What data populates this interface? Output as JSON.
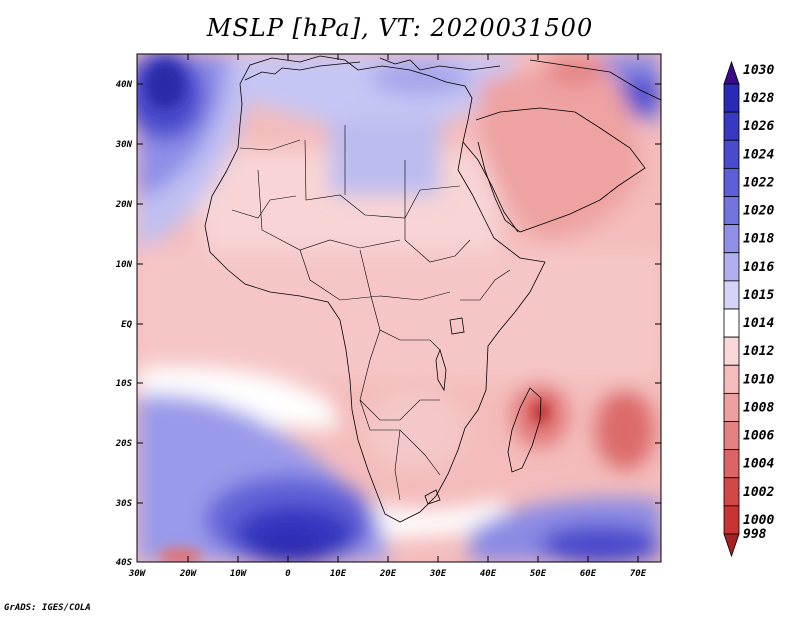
{
  "title": "MSLP [hPa], VT: 2020031500",
  "credit": "GrADS: IGES/COLA",
  "variable": "Mean sea level pressure",
  "units": "hPa",
  "valid_time": "2020031500",
  "lat_labels": [
    "40N",
    "30N",
    "20N",
    "10N",
    "EQ",
    "10S",
    "20S",
    "30S",
    "40S"
  ],
  "lon_labels": [
    "30W",
    "20W",
    "10W",
    "0",
    "10E",
    "20E",
    "30E",
    "40E",
    "50E",
    "60E",
    "70E"
  ],
  "colorbar": {
    "levels": [
      {
        "label": "1030",
        "color": "#3a0a8a"
      },
      {
        "label": "1028",
        "color": "#2a2ab8"
      },
      {
        "label": "1026",
        "color": "#3838c4"
      },
      {
        "label": "1024",
        "color": "#4a4ad0"
      },
      {
        "label": "1022",
        "color": "#5e5ed8"
      },
      {
        "label": "1020",
        "color": "#7474e0"
      },
      {
        "label": "1018",
        "color": "#9090e8"
      },
      {
        "label": "1016",
        "color": "#b0b0f0"
      },
      {
        "label": "1015",
        "color": "#d4d4f8"
      },
      {
        "label": "1014",
        "color": "#ffffff"
      },
      {
        "label": "1012",
        "color": "#f8d8d8"
      },
      {
        "label": "1010",
        "color": "#f4bcbc"
      },
      {
        "label": "1008",
        "color": "#eea0a0"
      },
      {
        "label": "1006",
        "color": "#e48282"
      },
      {
        "label": "1004",
        "color": "#dc6464"
      },
      {
        "label": "1002",
        "color": "#d24848"
      },
      {
        "label": "1000",
        "color": "#c83434"
      },
      {
        "label": "998",
        "color": "#a82020"
      }
    ]
  }
}
